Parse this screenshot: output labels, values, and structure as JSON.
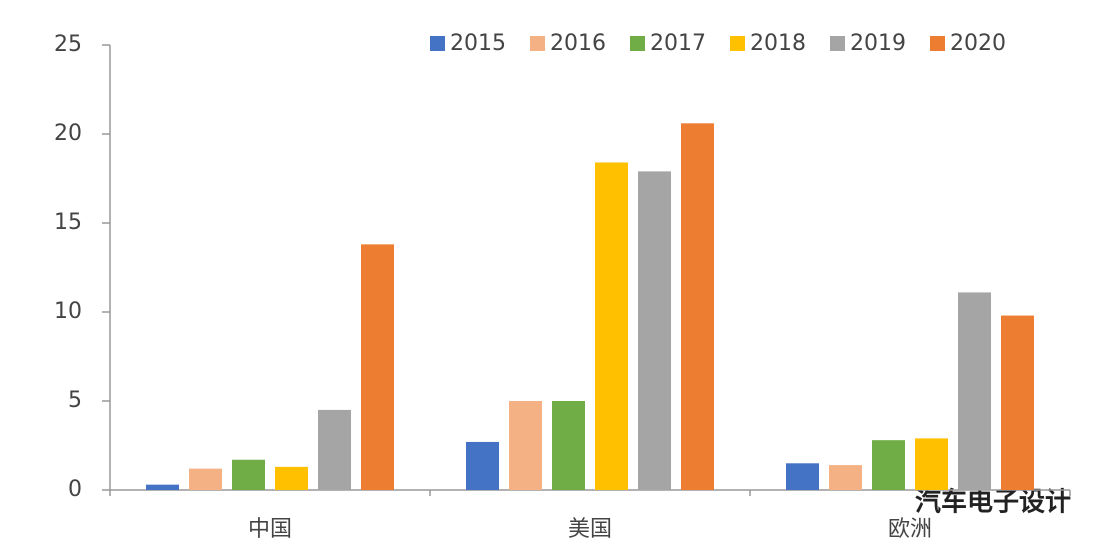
{
  "chart_data": {
    "type": "bar",
    "categories": [
      "中国",
      "美国",
      "欧洲"
    ],
    "series": [
      {
        "name": "2015",
        "color": "#4472c4",
        "values": [
          0.3,
          2.7,
          1.5
        ]
      },
      {
        "name": "2016",
        "color": "#f4b183",
        "values": [
          1.2,
          5.0,
          1.4
        ]
      },
      {
        "name": "2017",
        "color": "#70ad47",
        "values": [
          1.7,
          5.0,
          2.8
        ]
      },
      {
        "name": "2018",
        "color": "#ffc000",
        "values": [
          1.3,
          18.4,
          2.9
        ]
      },
      {
        "name": "2019",
        "color": "#a5a5a5",
        "values": [
          4.5,
          17.9,
          11.1
        ]
      },
      {
        "name": "2020",
        "color": "#ed7d31",
        "values": [
          13.8,
          20.6,
          9.8
        ]
      }
    ],
    "ylim": [
      0,
      25
    ],
    "yticks": [
      0,
      5,
      10,
      15,
      20,
      25
    ],
    "grid": false,
    "legend": "upper right",
    "watermark": "汽车电子设计"
  }
}
